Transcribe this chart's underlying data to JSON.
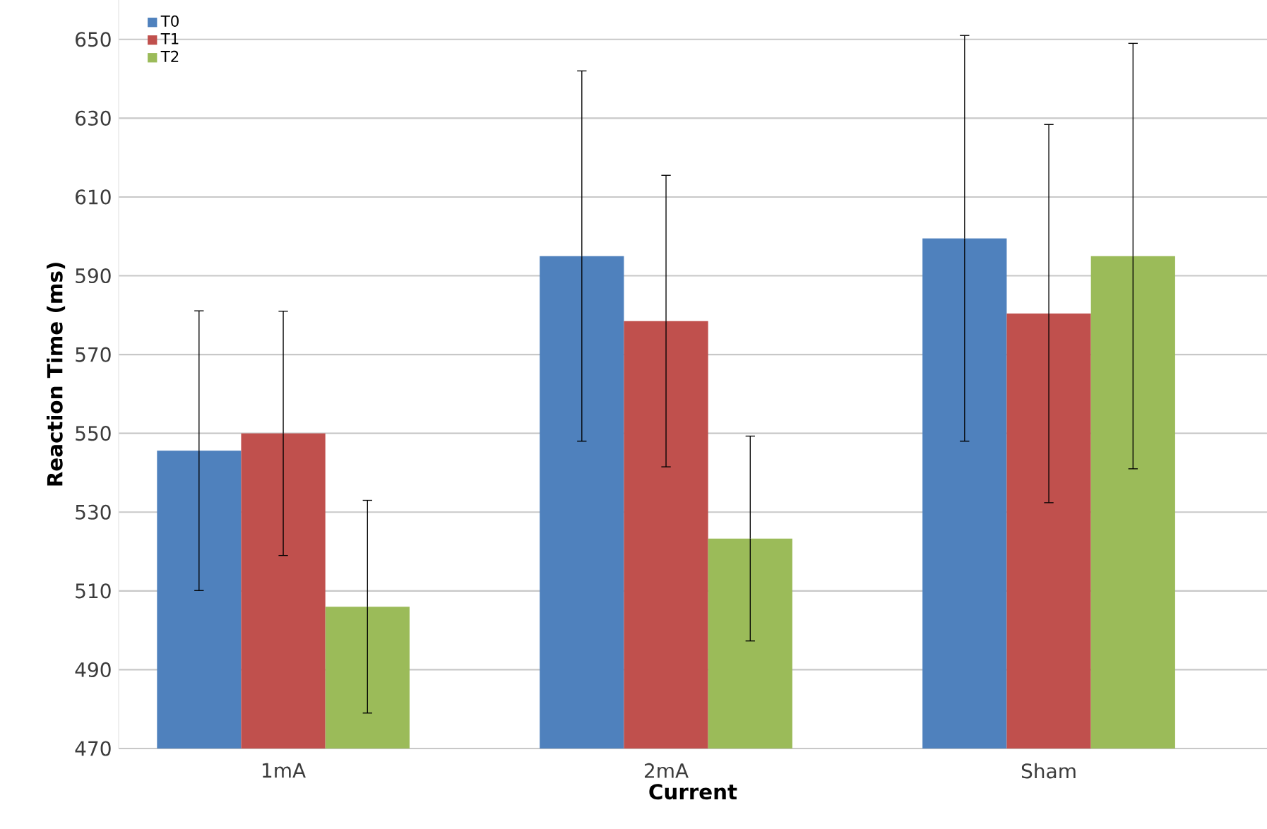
{
  "chart_data": {
    "type": "bar",
    "xlabel": "Current",
    "ylabel": "Reaction Time (ms)",
    "categories": [
      "1mA",
      "2mA",
      "Sham"
    ],
    "series": [
      {
        "name": "T0",
        "color": "#4f81bd",
        "values": [
          545.6,
          595,
          599.5
        ],
        "errors": [
          35.5,
          47,
          51.5
        ]
      },
      {
        "name": "T1",
        "color": "#c0504d",
        "values": [
          550,
          578.5,
          580.4
        ],
        "errors": [
          31,
          37,
          48
        ]
      },
      {
        "name": "T2",
        "color": "#9bbb59",
        "values": [
          506,
          523.3,
          595
        ],
        "errors": [
          27,
          26,
          54
        ]
      }
    ],
    "ylim": [
      470,
      660
    ],
    "yticks": [
      470,
      490,
      510,
      530,
      550,
      570,
      590,
      610,
      630,
      650
    ],
    "grid": "y",
    "legend": "top left"
  }
}
